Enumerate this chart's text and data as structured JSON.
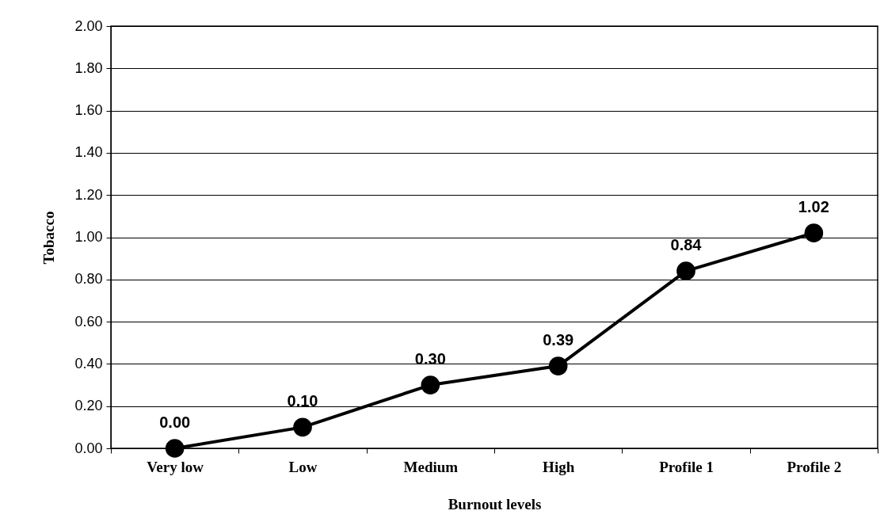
{
  "chart_data": {
    "type": "line",
    "xlabel": "Burnout levels",
    "ylabel": "Tobacco",
    "categories": [
      "Very low",
      "Low",
      "Medium",
      "High",
      "Profile 1",
      "Profile 2"
    ],
    "series": [
      {
        "color": "#000000",
        "values": [
          0.0,
          0.1,
          0.3,
          0.39,
          0.84,
          1.02
        ],
        "value_labels": [
          "0.00",
          "0.10",
          "0.30",
          "0.39",
          "0.84",
          "1.02"
        ]
      }
    ],
    "ylim": [
      0,
      2
    ],
    "yticks": [
      {
        "value": 0,
        "label": "0.00"
      },
      {
        "value": 0.2,
        "label": "0.20"
      },
      {
        "value": 0.4,
        "label": "0.40"
      },
      {
        "value": 0.6,
        "label": "0.60"
      },
      {
        "value": 0.8,
        "label": "0.80"
      },
      {
        "value": 1,
        "label": "1.00"
      },
      {
        "value": 1.2,
        "label": "1.20"
      },
      {
        "value": 1.4,
        "label": "1.40"
      },
      {
        "value": 1.6,
        "label": "1.60"
      },
      {
        "value": 1.8,
        "label": "1.80"
      },
      {
        "value": 2,
        "label": "2.00"
      }
    ],
    "grid": "y",
    "marker": "circle",
    "line_style": "solid"
  }
}
